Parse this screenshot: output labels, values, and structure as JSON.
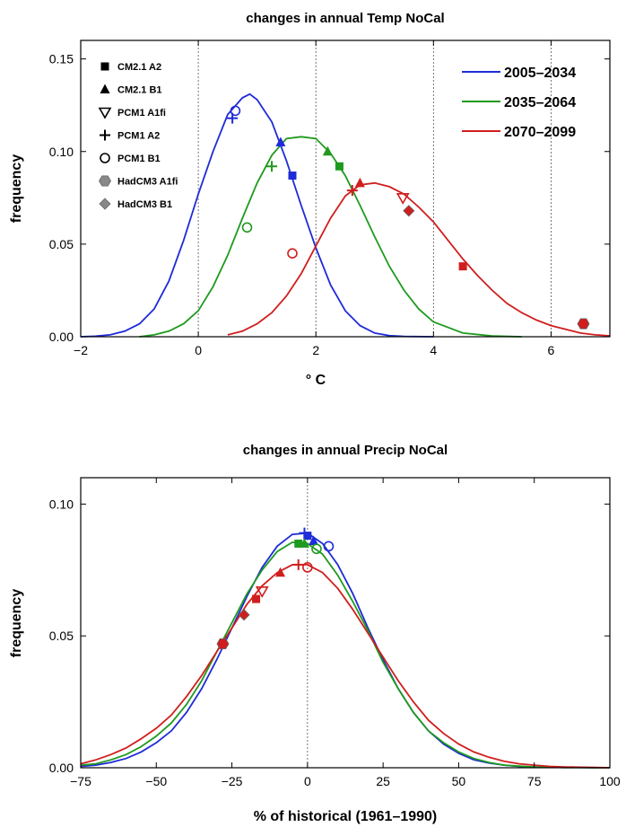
{
  "colors": {
    "2005-2034": "#1f2bd8",
    "2035-2064": "#1e9a1e",
    "2070-2099": "#d01e1e",
    "HadCM3": "#888888"
  },
  "marker_icons": {
    "CM2.1 A2": "filled-square",
    "CM2.1 B1": "filled-triangle",
    "PCM1 A1fi": "open-down-triangle",
    "PCM1 A2": "plus",
    "PCM1 B1": "open-circle",
    "HadCM3 A1fi": "filled-hexagon",
    "HadCM3 B1": "filled-diamond"
  },
  "chart_data": [
    {
      "type": "line",
      "title": "changes in annual Temp NoCal",
      "xlabel": "° C",
      "ylabel": "frequency",
      "xlim": [
        -2,
        7
      ],
      "ylim": [
        0,
        0.16
      ],
      "xticks": [
        -2,
        0,
        2,
        4,
        6
      ],
      "xticklabels": [
        "−2",
        "0",
        "2",
        "4",
        "6"
      ],
      "yticks": [
        0,
        0.05,
        0.1,
        0.15
      ],
      "yticklabels": [
        "0.00",
        "0.05",
        "0.10",
        "0.15"
      ],
      "vlines": [
        0,
        2,
        4,
        6
      ],
      "marker_legend": [
        "CM2.1 A2",
        "CM2.1 B1",
        "PCM1 A1fi",
        "PCM1 A2",
        "PCM1 B1",
        "HadCM3 A1fi",
        "HadCM3 B1"
      ],
      "legend_position": "top-right",
      "series": [
        {
          "name": "2005–2034",
          "color_key": "2005-2034",
          "x": [
            -2,
            -1.75,
            -1.5,
            -1.25,
            -1,
            -0.75,
            -0.5,
            -0.25,
            0,
            0.25,
            0.5,
            0.75,
            0.875,
            1,
            1.25,
            1.5,
            1.75,
            2,
            2.25,
            2.5,
            2.75,
            3,
            3.25,
            3.5,
            4
          ],
          "y": [
            0,
            0.0003,
            0.001,
            0.003,
            0.007,
            0.015,
            0.03,
            0.052,
            0.077,
            0.1,
            0.12,
            0.129,
            0.131,
            0.128,
            0.116,
            0.095,
            0.071,
            0.048,
            0.028,
            0.014,
            0.006,
            0.002,
            0.0006,
            0.0002,
            0
          ]
        },
        {
          "name": "2035–2064",
          "color_key": "2035-2064",
          "x": [
            -1,
            -0.75,
            -0.5,
            -0.25,
            0,
            0.25,
            0.5,
            0.75,
            1,
            1.25,
            1.5,
            1.75,
            2,
            2.25,
            2.5,
            2.75,
            3,
            3.25,
            3.5,
            3.75,
            4,
            4.5,
            5,
            5.5
          ],
          "y": [
            0,
            0.001,
            0.003,
            0.007,
            0.014,
            0.027,
            0.044,
            0.064,
            0.083,
            0.098,
            0.107,
            0.108,
            0.107,
            0.099,
            0.087,
            0.071,
            0.054,
            0.038,
            0.025,
            0.015,
            0.008,
            0.002,
            0.0004,
            0
          ]
        },
        {
          "name": "2070–2099",
          "color_key": "2070-2099",
          "x": [
            0.5,
            0.75,
            1,
            1.25,
            1.5,
            1.75,
            2,
            2.25,
            2.5,
            2.75,
            3,
            3.25,
            3.5,
            3.75,
            4,
            4.25,
            4.5,
            4.75,
            5,
            5.25,
            5.5,
            5.75,
            6,
            6.25,
            6.5,
            6.75,
            7
          ],
          "y": [
            0.001,
            0.003,
            0.007,
            0.013,
            0.022,
            0.034,
            0.049,
            0.064,
            0.076,
            0.082,
            0.083,
            0.081,
            0.077,
            0.07,
            0.062,
            0.052,
            0.042,
            0.033,
            0.025,
            0.018,
            0.013,
            0.009,
            0.006,
            0.004,
            0.002,
            0.001,
            0.0005
          ]
        }
      ],
      "markers": [
        {
          "model": "PCM1 A2",
          "series": "2005-2034",
          "x": 0.58,
          "y": 0.118
        },
        {
          "model": "PCM1 B1",
          "series": "2005-2034",
          "x": 0.63,
          "y": 0.122
        },
        {
          "model": "CM2.1 B1",
          "series": "2005-2034",
          "x": 1.4,
          "y": 0.105
        },
        {
          "model": "CM2.1 A2",
          "series": "2005-2034",
          "x": 1.6,
          "y": 0.087
        },
        {
          "model": "PCM1 B1",
          "series": "2035-2064",
          "x": 0.83,
          "y": 0.059
        },
        {
          "model": "PCM1 A2",
          "series": "2035-2064",
          "x": 1.25,
          "y": 0.092
        },
        {
          "model": "CM2.1 B1",
          "series": "2035-2064",
          "x": 2.2,
          "y": 0.1
        },
        {
          "model": "CM2.1 A2",
          "series": "2035-2064",
          "x": 2.4,
          "y": 0.092
        },
        {
          "model": "PCM1 B1",
          "series": "2070-2099",
          "x": 1.6,
          "y": 0.045
        },
        {
          "model": "PCM1 A2",
          "series": "2070-2099",
          "x": 2.62,
          "y": 0.079
        },
        {
          "model": "CM2.1 B1",
          "series": "2070-2099",
          "x": 2.75,
          "y": 0.083
        },
        {
          "model": "PCM1 A1fi",
          "series": "2070-2099",
          "x": 3.48,
          "y": 0.075
        },
        {
          "model": "HadCM3 B1",
          "series": "2070-2099",
          "x": 3.58,
          "y": 0.068
        },
        {
          "model": "CM2.1 A2",
          "series": "2070-2099",
          "x": 4.5,
          "y": 0.038
        },
        {
          "model": "HadCM3 A1fi",
          "series": "2070-2099",
          "x": 6.55,
          "y": 0.007
        }
      ]
    },
    {
      "type": "line",
      "title": "changes in annual Precip NoCal",
      "xlabel": "% of historical (1961–1990)",
      "ylabel": "frequency",
      "xlim": [
        -75,
        100
      ],
      "ylim": [
        0,
        0.11
      ],
      "xticks": [
        -75,
        -50,
        -25,
        0,
        25,
        50,
        75,
        100
      ],
      "xticklabels": [
        "−75",
        "−50",
        "−25",
        "0",
        "25",
        "50",
        "75",
        "100"
      ],
      "yticks": [
        0,
        0.05,
        0.1
      ],
      "yticklabels": [
        "0.00",
        "0.05",
        "0.10"
      ],
      "vlines": [
        0
      ],
      "series": [
        {
          "name": "2005–2034",
          "color_key": "2005-2034",
          "x": [
            -75,
            -70,
            -65,
            -60,
            -55,
            -50,
            -45,
            -40,
            -35,
            -30,
            -25,
            -20,
            -15,
            -10,
            -5,
            0,
            5,
            10,
            15,
            20,
            25,
            30,
            35,
            40,
            45,
            50,
            55,
            60,
            65,
            70,
            75,
            80,
            85,
            90,
            95,
            100
          ],
          "y": [
            0.0005,
            0.001,
            0.002,
            0.0035,
            0.006,
            0.0095,
            0.014,
            0.021,
            0.03,
            0.041,
            0.053,
            0.065,
            0.076,
            0.084,
            0.0885,
            0.089,
            0.085,
            0.077,
            0.066,
            0.053,
            0.041,
            0.03,
            0.021,
            0.014,
            0.009,
            0.0055,
            0.003,
            0.0018,
            0.001,
            0.0005,
            0.0003,
            0.0002,
            0.0001,
            0.0001,
            0,
            0
          ]
        },
        {
          "name": "2035–2064",
          "color_key": "2035-2064",
          "x": [
            -75,
            -70,
            -65,
            -60,
            -55,
            -50,
            -45,
            -40,
            -35,
            -30,
            -25,
            -20,
            -15,
            -10,
            -5,
            0,
            5,
            10,
            15,
            20,
            25,
            30,
            35,
            40,
            45,
            50,
            55,
            60,
            65,
            70,
            75,
            80,
            85,
            90,
            95,
            100
          ],
          "y": [
            0.001,
            0.0015,
            0.003,
            0.005,
            0.008,
            0.012,
            0.017,
            0.024,
            0.033,
            0.044,
            0.055,
            0.066,
            0.075,
            0.082,
            0.0855,
            0.085,
            0.081,
            0.073,
            0.063,
            0.052,
            0.04,
            0.03,
            0.021,
            0.014,
            0.0095,
            0.006,
            0.0035,
            0.002,
            0.001,
            0.0006,
            0.0003,
            0.0002,
            0.0001,
            0.0001,
            0,
            0
          ]
        },
        {
          "name": "2070–2099",
          "color_key": "2070-2099",
          "x": [
            -75,
            -70,
            -65,
            -60,
            -55,
            -50,
            -45,
            -40,
            -35,
            -30,
            -25,
            -20,
            -15,
            -10,
            -5,
            0,
            5,
            10,
            15,
            20,
            25,
            30,
            35,
            40,
            45,
            50,
            55,
            60,
            65,
            70,
            75,
            80,
            85,
            90,
            95,
            100
          ],
          "y": [
            0.0015,
            0.003,
            0.005,
            0.0075,
            0.011,
            0.015,
            0.02,
            0.027,
            0.035,
            0.044,
            0.053,
            0.062,
            0.069,
            0.074,
            0.077,
            0.077,
            0.074,
            0.068,
            0.06,
            0.051,
            0.042,
            0.033,
            0.025,
            0.018,
            0.013,
            0.009,
            0.006,
            0.004,
            0.0025,
            0.0015,
            0.001,
            0.0005,
            0.0003,
            0.0002,
            0.0001,
            0
          ]
        }
      ],
      "markers": [
        {
          "model": "PCM1 A2",
          "series": "2005-2034",
          "x": -1,
          "y": 0.089
        },
        {
          "model": "CM2.1 A2",
          "series": "2005-2034",
          "x": 0,
          "y": 0.088
        },
        {
          "model": "CM2.1 B1",
          "series": "2005-2034",
          "x": 2,
          "y": 0.086
        },
        {
          "model": "PCM1 B1",
          "series": "2005-2034",
          "x": 7,
          "y": 0.084
        },
        {
          "model": "CM2.1 A2",
          "series": "2035-2064",
          "x": -3,
          "y": 0.085
        },
        {
          "model": "CM2.1 B1",
          "series": "2035-2064",
          "x": -1,
          "y": 0.085
        },
        {
          "model": "PCM1 B1",
          "series": "2035-2064",
          "x": 3,
          "y": 0.083
        },
        {
          "model": "HadCM3 A1fi",
          "series": "2070-2099",
          "x": -28,
          "y": 0.047
        },
        {
          "model": "HadCM3 B1",
          "series": "2070-2099",
          "x": -21,
          "y": 0.058
        },
        {
          "model": "CM2.1 A2",
          "series": "2070-2099",
          "x": -17,
          "y": 0.064
        },
        {
          "model": "PCM1 A1fi",
          "series": "2070-2099",
          "x": -15,
          "y": 0.067
        },
        {
          "model": "CM2.1 B1",
          "series": "2070-2099",
          "x": -9,
          "y": 0.074
        },
        {
          "model": "PCM1 A2",
          "series": "2070-2099",
          "x": -3,
          "y": 0.077
        },
        {
          "model": "PCM1 B1",
          "series": "2070-2099",
          "x": 0,
          "y": 0.076
        }
      ]
    }
  ]
}
